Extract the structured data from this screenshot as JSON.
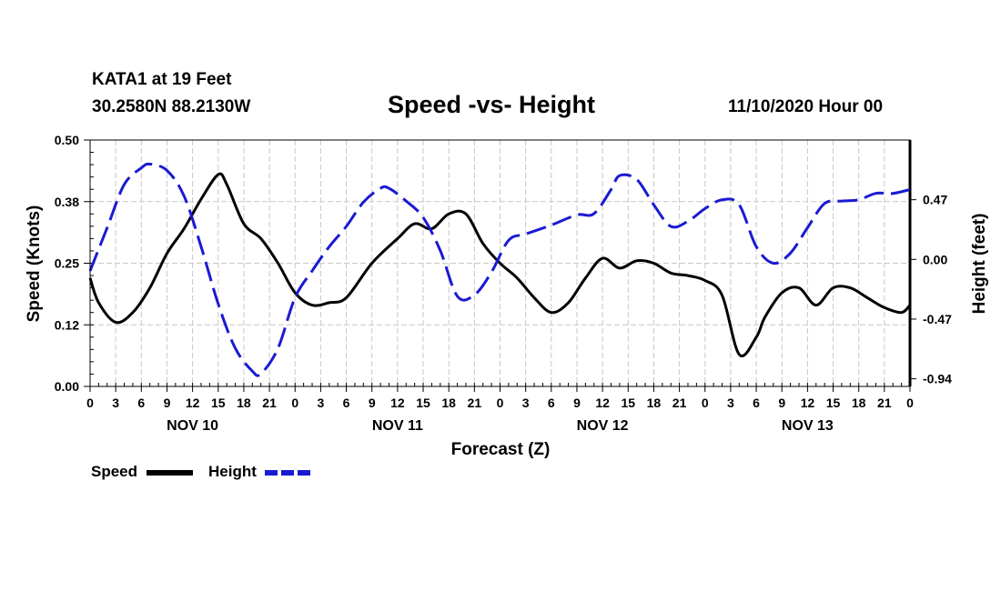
{
  "header": {
    "station": "KATA1 at 19 Feet",
    "coords": "30.2580N 88.2130W",
    "title": "Speed -vs- Height",
    "date": "11/10/2020 Hour 00"
  },
  "chart_data": {
    "type": "line",
    "title": "Speed -vs- Height",
    "xlabel": "Forecast (Z)",
    "ylabel": "Speed (Knots)",
    "ylabel_right": "Height (feet)",
    "x_unit": "forecast hour",
    "xlim": [
      0,
      96
    ],
    "ylim": [
      0,
      0.5
    ],
    "ylim_right": [
      -1.0,
      0.94
    ],
    "grid": true,
    "x_tick_labels": [
      "0",
      "3",
      "6",
      "9",
      "12",
      "15",
      "18",
      "21",
      "0",
      "3",
      "6",
      "9",
      "12",
      "15",
      "18",
      "21",
      "0",
      "3",
      "6",
      "9",
      "12",
      "15",
      "18",
      "21",
      "0",
      "3",
      "6",
      "9",
      "12",
      "15",
      "18",
      "21",
      "0"
    ],
    "day_labels": [
      "NOV 10",
      "NOV 11",
      "NOV 12",
      "NOV 13"
    ],
    "y_ticks": [
      0.0,
      0.125,
      0.25,
      0.375,
      0.5
    ],
    "y_tick_labels": [
      "0.00",
      "0.12",
      "0.25",
      "0.38",
      "0.50"
    ],
    "y_right_ticks": [
      -0.94,
      -0.47,
      0.0,
      0.47
    ],
    "y_right_tick_labels": [
      "-0.94",
      "-0.47",
      "0.00",
      "0.47"
    ],
    "legend": [
      {
        "name": "Speed",
        "color": "#000000",
        "dash": "solid"
      },
      {
        "name": "Height",
        "color": "#1a1ad2",
        "dash": "dashed"
      }
    ],
    "series": [
      {
        "name": "Speed",
        "axis": "left",
        "color": "#000000",
        "x": [
          0,
          1,
          3,
          5,
          7,
          9,
          11,
          13,
          15,
          16,
          18,
          20,
          22,
          24,
          26,
          28,
          30,
          33,
          36,
          38,
          40,
          42,
          44,
          46,
          48,
          50,
          52,
          54,
          56,
          58,
          60,
          62,
          64,
          66,
          68,
          70,
          72,
          74,
          76,
          78,
          79,
          81,
          83,
          85,
          87,
          89,
          91,
          93,
          95,
          96
        ],
        "values": [
          0.22,
          0.17,
          0.13,
          0.15,
          0.2,
          0.27,
          0.32,
          0.38,
          0.43,
          0.41,
          0.33,
          0.3,
          0.25,
          0.19,
          0.165,
          0.17,
          0.18,
          0.25,
          0.3,
          0.33,
          0.32,
          0.35,
          0.35,
          0.29,
          0.25,
          0.22,
          0.18,
          0.15,
          0.17,
          0.22,
          0.26,
          0.24,
          0.255,
          0.25,
          0.23,
          0.225,
          0.215,
          0.185,
          0.065,
          0.1,
          0.14,
          0.19,
          0.2,
          0.165,
          0.2,
          0.2,
          0.18,
          0.16,
          0.15,
          0.165
        ]
      },
      {
        "name": "Height",
        "axis": "right",
        "color": "#1a1ad2",
        "x": [
          0,
          2,
          4,
          6,
          7,
          9,
          11,
          13,
          15,
          17,
          19,
          20,
          22,
          24,
          26,
          28,
          30,
          32,
          34,
          35,
          37,
          39,
          41,
          43,
          45,
          47,
          49,
          51,
          54,
          57,
          59,
          61,
          62,
          64,
          66,
          68,
          70,
          72,
          74,
          76,
          78,
          80,
          82,
          84,
          86,
          88,
          90,
          92,
          94,
          96
        ],
        "values": [
          -0.09,
          0.25,
          0.59,
          0.72,
          0.75,
          0.7,
          0.5,
          0.1,
          -0.35,
          -0.7,
          -0.88,
          -0.9,
          -0.7,
          -0.3,
          -0.09,
          0.1,
          0.26,
          0.45,
          0.56,
          0.56,
          0.46,
          0.33,
          0.07,
          -0.29,
          -0.28,
          -0.1,
          0.15,
          0.2,
          0.27,
          0.35,
          0.36,
          0.55,
          0.66,
          0.63,
          0.43,
          0.26,
          0.3,
          0.4,
          0.47,
          0.43,
          0.1,
          -0.03,
          0.05,
          0.25,
          0.44,
          0.46,
          0.47,
          0.52,
          0.52,
          0.55
        ]
      }
    ]
  }
}
